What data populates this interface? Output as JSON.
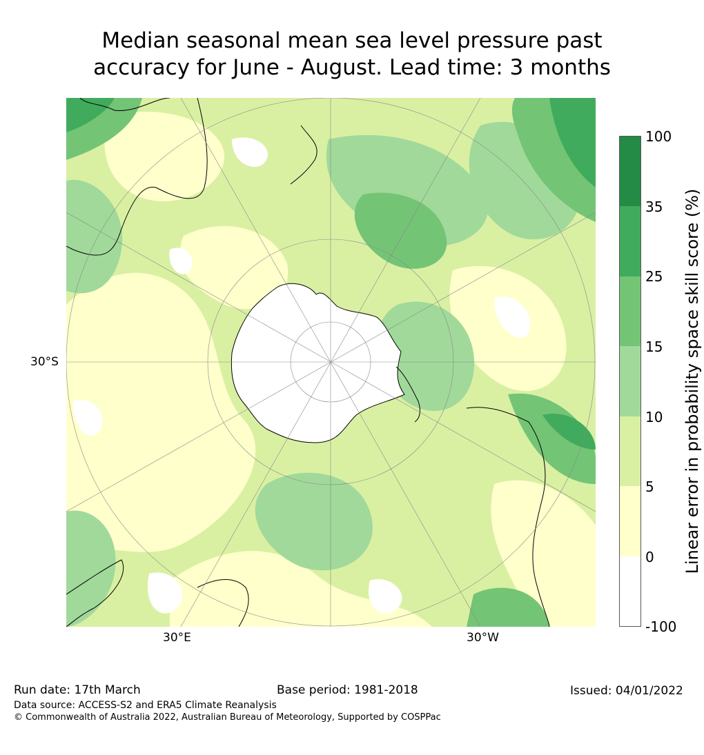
{
  "title": {
    "line1": "Median seasonal mean sea level pressure past",
    "line2": "accuracy for June - August. Lead time: 3 months"
  },
  "map": {
    "lat_label": "30°S",
    "lon_labels": [
      "30°E",
      "30°W"
    ]
  },
  "colorbar": {
    "label": "Linear error in probability space skill score (%)",
    "ticks": [
      "100",
      "35",
      "25",
      "15",
      "10",
      "5",
      "0",
      "-100"
    ],
    "colors": [
      "#238b45",
      "#41ab5d",
      "#74c476",
      "#a1d99b",
      "#d9f0a3",
      "#ffffcc",
      "#ffffff"
    ]
  },
  "footer": {
    "run_date": "Run date: 17th March",
    "base_period": "Base period: 1981-2018",
    "issued": "Issued: 04/01/2022",
    "data_source": "Data source: ACCESS-S2 and ERA5 Climate Reanalysis",
    "copyright": "© Commonwealth of Australia 2022, Australian Bureau of Meteorology, Supported by COSPPac"
  }
}
